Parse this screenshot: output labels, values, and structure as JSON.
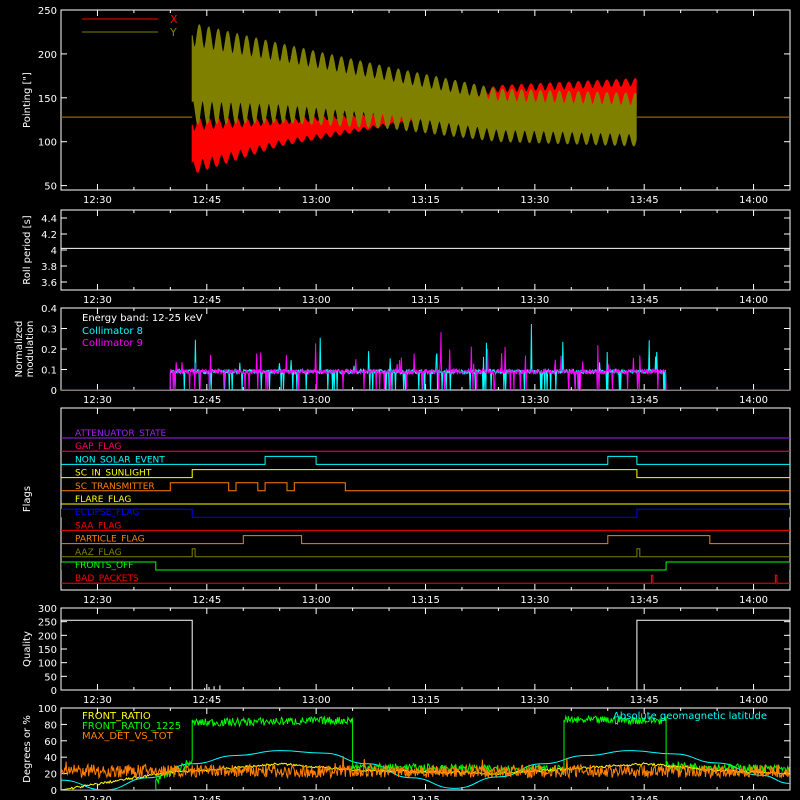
{
  "figure": {
    "background": "#000000",
    "foreground": "#ffffff",
    "time_ticks": [
      "12:30",
      "12:45",
      "13:00",
      "13:15",
      "13:30",
      "13:45",
      "14:00"
    ]
  },
  "chart_data": [
    {
      "id": "pointing",
      "type": "line",
      "ylabel": "Pointing [\"]",
      "xlim": [
        "12:25",
        "14:05"
      ],
      "ylim": [
        45,
        250
      ],
      "yticks": [
        50,
        100,
        150,
        200,
        250
      ],
      "legend": [
        {
          "name": "X",
          "color": "#ff0000"
        },
        {
          "name": "Y",
          "color": "#808000"
        }
      ],
      "series": [
        {
          "name": "X",
          "color": "#ff0000",
          "oscillation": {
            "start": "12:43",
            "end": "13:44",
            "period_min": 1.3,
            "envelope": [
              {
                "t": "12:43",
                "lo": 63,
                "hi": 127
              },
              {
                "t": "12:55",
                "lo": 95,
                "hi": 126
              },
              {
                "t": "13:10",
                "lo": 118,
                "hi": 135
              },
              {
                "t": "13:25",
                "lo": 128,
                "hi": 164
              },
              {
                "t": "13:44",
                "lo": 133,
                "hi": 172
              }
            ]
          },
          "baseline": 128
        },
        {
          "name": "Y",
          "color": "#808000",
          "oscillation": {
            "start": "12:43",
            "end": "13:44",
            "period_min": 1.3,
            "envelope": [
              {
                "t": "12:43",
                "lo": 120,
                "hi": 235
              },
              {
                "t": "12:55",
                "lo": 122,
                "hi": 212
              },
              {
                "t": "13:10",
                "lo": 115,
                "hi": 185
              },
              {
                "t": "13:25",
                "lo": 100,
                "hi": 160
              },
              {
                "t": "13:44",
                "lo": 95,
                "hi": 155
              }
            ]
          },
          "baseline": 128
        }
      ]
    },
    {
      "id": "roll",
      "type": "line",
      "ylabel": "Roll period [s]",
      "xlim": [
        "12:25",
        "14:05"
      ],
      "ylim": [
        3.5,
        4.5
      ],
      "yticks": [
        3.6,
        3.8,
        4.0,
        4.2,
        4.4
      ],
      "series": [
        {
          "name": "",
          "color": "#ffffff",
          "x": [
            "12:25",
            "14:05"
          ],
          "y": [
            4.02,
            4.02
          ]
        }
      ]
    },
    {
      "id": "modulation",
      "type": "line",
      "ylabel": [
        "Normalized",
        "modulation"
      ],
      "xlim": [
        "12:25",
        "14:05"
      ],
      "ylim": [
        0.0,
        0.4
      ],
      "yticks": [
        0.0,
        0.1,
        0.2,
        0.3,
        0.4
      ],
      "annotation": "Energy band: 12-25 keV",
      "legend": [
        {
          "name": "Collimator 8",
          "color": "#00ffff"
        },
        {
          "name": "Collimator 9",
          "color": "#ff00ff"
        }
      ],
      "series": [
        {
          "name": "Collimator 8",
          "color": "#00ffff",
          "active": [
            "12:40",
            "13:48"
          ],
          "typical": 0.09,
          "max": 0.35
        },
        {
          "name": "Collimator 9",
          "color": "#ff00ff",
          "active": [
            "12:40",
            "13:48"
          ],
          "typical": 0.09,
          "max": 0.32
        }
      ]
    },
    {
      "id": "flags",
      "type": "line",
      "ylabel": "Flags",
      "xlim": [
        "12:25",
        "14:05"
      ],
      "flags": [
        {
          "name": "ATTENUATOR_STATE",
          "color": "#a020f0",
          "high": []
        },
        {
          "name": "GAP_FLAG",
          "color": "#ff0066",
          "high": []
        },
        {
          "name": "NON_SOLAR_EVENT",
          "color": "#00ffff",
          "high": [
            [
              "12:53",
              "13:00"
            ],
            [
              "13:40",
              "13:44"
            ]
          ]
        },
        {
          "name": "SC_IN_SUNLIGHT",
          "color": "#ffff00",
          "high": [
            [
              "12:43",
              "13:44"
            ]
          ]
        },
        {
          "name": "SC_TRANSMITTER",
          "color": "#ff8000",
          "high": [
            [
              "12:40",
              "12:48"
            ],
            [
              "12:49",
              "12:52"
            ],
            [
              "12:53",
              "12:56"
            ],
            [
              "12:57",
              "13:04"
            ]
          ]
        },
        {
          "name": "FLARE_FLAG",
          "color": "#ffff00",
          "high": []
        },
        {
          "name": "ECLIPSE_FLAG",
          "color": "#0000ff",
          "high": [
            [
              "12:25",
              "12:43"
            ],
            [
              "13:44",
              "14:05"
            ]
          ]
        },
        {
          "name": "SAA_FLAG",
          "color": "#ff0000",
          "high": []
        },
        {
          "name": "PARTICLE_FLAG",
          "color": "#ff8000",
          "high": [
            [
              "12:50",
              "12:58"
            ],
            [
              "13:40",
              "13:54"
            ]
          ]
        },
        {
          "name": "AAZ_FLAG",
          "color": "#808000",
          "high": [
            [
              "12:43",
              "12:43.4"
            ],
            [
              "13:44",
              "13:44.4"
            ]
          ]
        },
        {
          "name": "FRONTS_OFF",
          "color": "#00ff00",
          "high": [
            [
              "12:25",
              "12:38"
            ],
            [
              "13:48",
              "14:05"
            ]
          ]
        },
        {
          "name": "BAD_PACKETS",
          "color": "#ff0000",
          "high": [
            [
              "13:46",
              "13:46.2"
            ],
            [
              "14:03",
              "14:03.2"
            ]
          ]
        }
      ]
    },
    {
      "id": "quality",
      "type": "line",
      "ylabel": "Quality",
      "xlim": [
        "12:25",
        "14:05"
      ],
      "ylim": [
        0,
        300
      ],
      "yticks": [
        0,
        50,
        100,
        150,
        200,
        250,
        300
      ],
      "series": [
        {
          "name": "",
          "color": "#ffffff",
          "x": [
            "12:25",
            "12:43",
            "12:43",
            "13:44",
            "13:44",
            "14:05"
          ],
          "y": [
            255,
            255,
            0,
            0,
            255,
            255
          ]
        }
      ]
    },
    {
      "id": "geo",
      "type": "line",
      "ylabel": "Degrees or %",
      "xlim": [
        "12:25",
        "14:05"
      ],
      "ylim": [
        0,
        100
      ],
      "yticks": [
        0,
        20,
        40,
        60,
        80,
        100
      ],
      "legend": [
        {
          "name": "FRONT_RATIO",
          "color": "#ffff00"
        },
        {
          "name": "FRONT_RATIO_1225",
          "color": "#00ff00"
        },
        {
          "name": "MAX_DET_VS_TOT",
          "color": "#ff8000"
        },
        {
          "name": "Absolute geomagnetic latitude",
          "color": "#00ffff"
        }
      ],
      "series": [
        {
          "name": "Absolute geomagnetic latitude",
          "color": "#00ffff",
          "x": [
            "12:25",
            "12:31",
            "12:37",
            "12:43",
            "12:49",
            "12:55",
            "13:01",
            "13:07",
            "13:13",
            "13:19",
            "13:25",
            "13:31",
            "13:37",
            "13:43",
            "13:49",
            "13:55",
            "14:01",
            "14:05"
          ],
          "y": [
            12,
            0,
            15,
            32,
            42,
            48,
            45,
            32,
            15,
            2,
            16,
            32,
            42,
            48,
            44,
            33,
            18,
            8
          ]
        },
        {
          "name": "FRONT_RATIO_1225",
          "color": "#00ff00",
          "x": [
            "12:25",
            "12:38",
            "12:38",
            "12:43",
            "12:43",
            "13:05",
            "13:05",
            "13:34",
            "13:34",
            "13:48",
            "13:48",
            "14:05"
          ],
          "y": [
            0,
            0,
            12,
            35,
            82,
            85,
            28,
            25,
            85,
            85,
            30,
            25
          ]
        },
        {
          "name": "FRONT_RATIO",
          "color": "#ffff00",
          "x": [
            "12:25",
            "12:40",
            "12:45",
            "12:55",
            "13:05",
            "13:15",
            "13:25",
            "13:35",
            "13:45",
            "13:55",
            "14:05"
          ],
          "y": [
            0,
            22,
            24,
            32,
            24,
            22,
            20,
            26,
            32,
            24,
            20
          ]
        },
        {
          "name": "MAX_DET_VS_TOT",
          "color": "#ff8000",
          "typical": 23
        }
      ]
    }
  ]
}
